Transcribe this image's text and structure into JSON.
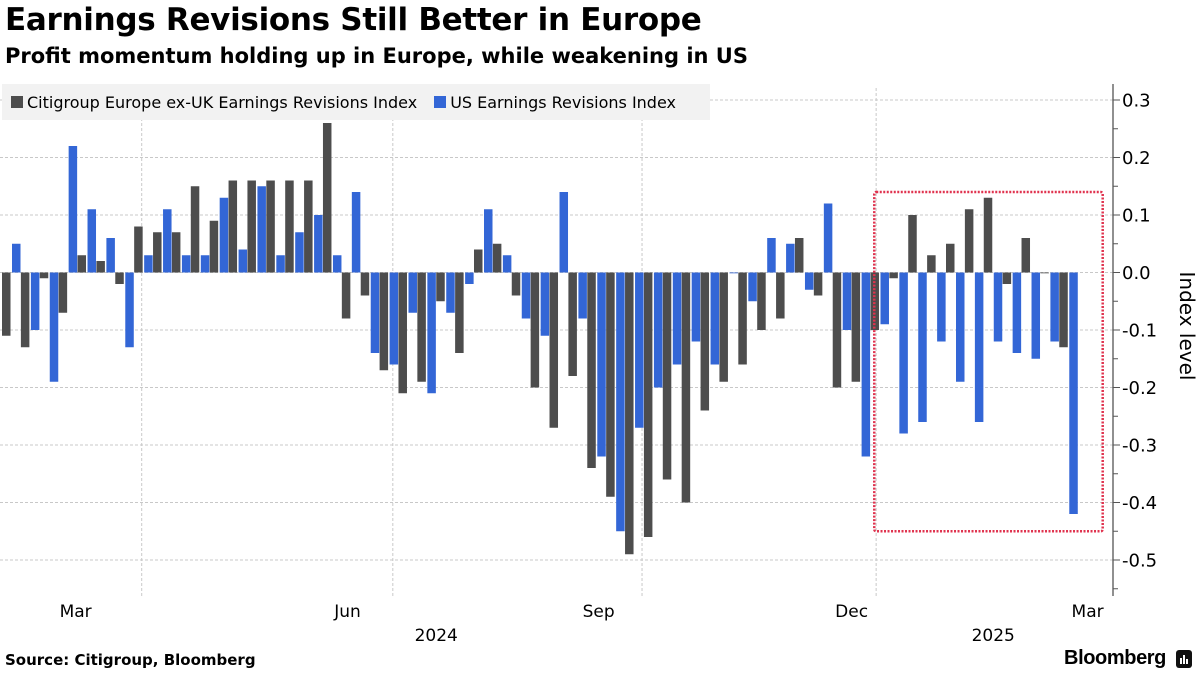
{
  "header": {
    "title": "Earnings Revisions Still Better in Europe",
    "subtitle": "Profit momentum holding up in Europe, while weakening in US"
  },
  "footer": {
    "source": "Source: Citigroup, Bloomberg",
    "brand": "Bloomberg",
    "brand_icon": "bloomberg-logo-icon"
  },
  "chart_data": {
    "type": "bar",
    "title": "Earnings Revisions Still Better in Europe",
    "subtitle": "Profit momentum holding up in Europe, while weakening in US",
    "xlabel": "",
    "ylabel": "Index level",
    "ylim": [
      -0.56,
      0.33
    ],
    "yticks": [
      0.3,
      0.2,
      0.1,
      0.0,
      -0.1,
      -0.2,
      -0.3,
      -0.4,
      -0.5
    ],
    "ytick_labels": [
      "0.3",
      "0.2",
      "0.1",
      "0.0",
      "-0.1",
      "-0.2",
      "-0.3",
      "-0.4",
      "-0.5"
    ],
    "y_axis_side": "right",
    "grid": true,
    "legend_position": "top-left",
    "x_ticks": [
      {
        "label": "Mar",
        "index": 3.9,
        "gridline": false
      },
      {
        "label": "Jun",
        "index": 18.3,
        "gridline": true
      },
      {
        "label": "Sep",
        "index": 31.6,
        "gridline": true
      },
      {
        "label": "Dec",
        "index": 45.0,
        "gridline": true
      },
      {
        "label": "Mar",
        "index": 57.5,
        "gridline": false
      }
    ],
    "x_gridlines_at_index": [
      7.4,
      20.7,
      33.9,
      46.3
    ],
    "year_labels": [
      {
        "label": "2024",
        "index": 23.0
      },
      {
        "label": "2025",
        "index": 52.5
      }
    ],
    "highlight_box": {
      "from_index": 46.2,
      "to_index": 58.3,
      "y_range": [
        -0.45,
        0.14
      ],
      "color": "#e0334f"
    },
    "series": [
      {
        "name": "Citigroup Europe ex-UK Earnings Revisions Index",
        "color": "#4d4d4d",
        "values": [
          -0.11,
          -0.13,
          -0.01,
          -0.07,
          0.03,
          0.02,
          -0.02,
          0.08,
          0.07,
          0.07,
          0.15,
          0.09,
          0.16,
          0.16,
          0.16,
          0.16,
          0.16,
          0.26,
          -0.08,
          -0.04,
          -0.17,
          -0.21,
          -0.19,
          -0.05,
          -0.14,
          0.04,
          0.05,
          -0.04,
          -0.2,
          -0.27,
          -0.18,
          -0.34,
          -0.39,
          -0.49,
          -0.46,
          -0.36,
          -0.4,
          -0.24,
          -0.19,
          -0.16,
          -0.1,
          -0.08,
          0.06,
          -0.04,
          -0.2,
          -0.19,
          -0.1,
          -0.01,
          0.1,
          0.03,
          0.05,
          0.11,
          0.13,
          -0.02,
          0.06,
          0.0,
          -0.13
        ]
      },
      {
        "name": "US Earnings Revisions Index",
        "color": "#3366d6",
        "values": [
          0.05,
          -0.1,
          -0.19,
          0.22,
          0.11,
          0.06,
          -0.13,
          0.03,
          0.11,
          0.03,
          0.03,
          0.13,
          0.04,
          0.15,
          0.03,
          0.07,
          0.1,
          0.03,
          0.14,
          -0.14,
          -0.16,
          -0.07,
          -0.21,
          -0.07,
          -0.02,
          0.11,
          0.03,
          -0.08,
          -0.11,
          0.14,
          -0.08,
          -0.32,
          -0.45,
          -0.27,
          -0.2,
          -0.16,
          -0.12,
          -0.16,
          0.0,
          -0.05,
          0.06,
          0.05,
          -0.03,
          0.12,
          -0.1,
          -0.32,
          -0.09,
          -0.28,
          -0.26,
          -0.12,
          -0.19,
          -0.26,
          -0.12,
          -0.14,
          -0.15,
          -0.12,
          -0.42
        ]
      }
    ]
  }
}
